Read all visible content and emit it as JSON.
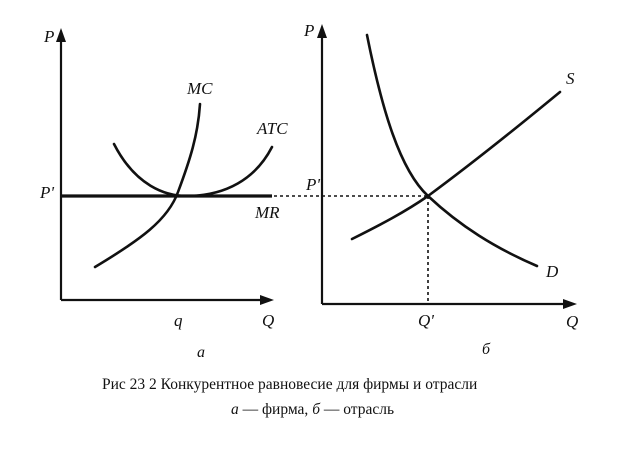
{
  "panel_a": {
    "y_axis": "P",
    "x_axis": "Q",
    "price_label": "P'",
    "quantity_label": "q",
    "curves": {
      "mc": "MC",
      "atc": "ATC",
      "mr": "MR"
    },
    "sublabel": "а"
  },
  "panel_b": {
    "y_axis": "P",
    "x_axis": "Q",
    "price_label": "P'",
    "quantity_label": "Q'",
    "curves": {
      "supply": "S",
      "demand": "D"
    },
    "sublabel": "б"
  },
  "caption": {
    "line1": "Рис 23 2 Конкурентное равновесие для фирмы и отрасли",
    "line2_a": "а",
    "line2_a_text": " — фирма, ",
    "line2_b": "б",
    "line2_b_text": " — отрасль"
  }
}
